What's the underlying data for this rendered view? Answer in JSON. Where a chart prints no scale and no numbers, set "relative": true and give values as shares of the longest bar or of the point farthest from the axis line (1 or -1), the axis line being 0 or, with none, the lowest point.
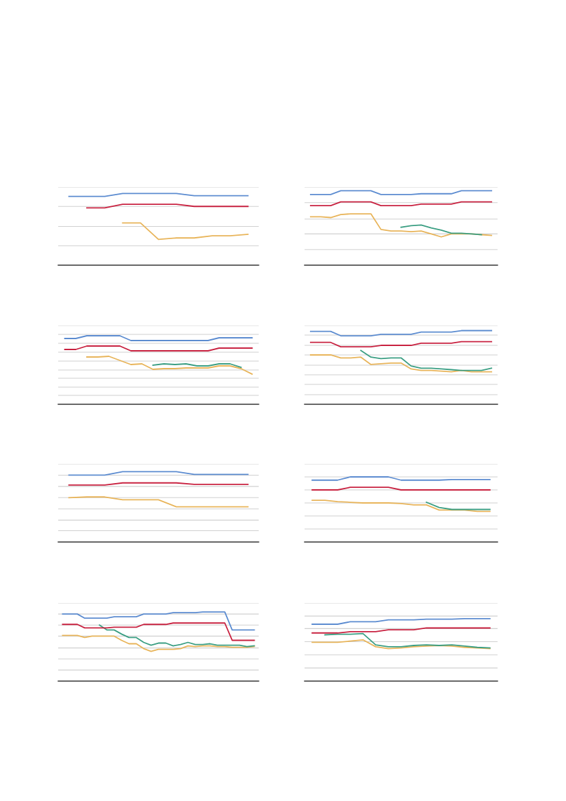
{
  "chart_data": [
    {
      "type": "line",
      "relative": true,
      "ref_lines": [
        {
          "axis": "y",
          "value": 0.27,
          "color": "#d0d0d0"
        },
        {
          "axis": "y",
          "value": 0.54,
          "color": "#d0d0d0"
        },
        {
          "axis": "y",
          "value": 0.82,
          "color": "#d0d0d0"
        },
        {
          "axis": "y",
          "value": 1.09,
          "color": "#d0d0d0"
        }
      ],
      "categories": [
        null,
        null,
        null,
        null,
        null,
        null,
        null,
        null,
        null,
        null,
        null
      ],
      "series": [
        {
          "color": "#e8b459",
          "values": [
            null,
            null,
            null,
            0.59,
            0.59,
            0.36,
            0.38,
            0.38,
            0.41,
            0.41,
            0.43
          ]
        },
        {
          "color": "#c8203f",
          "values": [
            null,
            0.8,
            0.8,
            0.85,
            0.85,
            0.85,
            0.85,
            0.82,
            0.82,
            0.82,
            0.82
          ]
        },
        {
          "color": "#5b8bd0",
          "values": [
            0.96,
            0.96,
            0.96,
            1,
            1,
            1,
            1,
            0.97,
            0.97,
            0.97,
            0.97
          ]
        }
      ]
    },
    {
      "type": "line",
      "relative": true,
      "ref_lines": [
        {
          "axis": "y",
          "value": 0.21,
          "color": "#d0d0d0"
        },
        {
          "axis": "y",
          "value": 0.42,
          "color": "#d0d0d0"
        },
        {
          "axis": "y",
          "value": 0.62,
          "color": "#d0d0d0"
        },
        {
          "axis": "y",
          "value": 0.84,
          "color": "#d0d0d0"
        },
        {
          "axis": "y",
          "value": 1.05,
          "color": "#d0d0d0"
        }
      ],
      "categories": [
        null,
        null,
        null,
        null,
        null,
        null,
        null,
        null,
        null,
        null,
        null,
        null,
        null,
        null,
        null,
        null,
        null,
        null,
        null
      ],
      "series": [
        {
          "color": "#e8b459",
          "values": [
            0.65,
            0.65,
            0.64,
            0.68,
            0.69,
            0.69,
            0.69,
            0.48,
            0.46,
            0.46,
            0.45,
            0.46,
            0.42,
            0.38,
            0.42,
            0.42,
            0.42,
            0.41,
            0.4
          ]
        },
        {
          "color": "#3a9e82",
          "values": [
            null,
            null,
            null,
            null,
            null,
            null,
            null,
            null,
            null,
            0.51,
            0.53,
            0.54,
            0.5,
            0.47,
            0.43,
            0.43,
            0.42,
            0.41,
            null
          ]
        },
        {
          "color": "#c8203f",
          "values": [
            0.8,
            0.8,
            0.8,
            0.85,
            0.85,
            0.85,
            0.85,
            0.8,
            0.8,
            0.8,
            0.8,
            0.82,
            0.82,
            0.82,
            0.82,
            0.85,
            0.85,
            0.85,
            0.85
          ]
        },
        {
          "color": "#5b8bd0",
          "values": [
            0.95,
            0.95,
            0.95,
            1,
            1,
            1,
            1,
            0.95,
            0.95,
            0.95,
            0.95,
            0.96,
            0.96,
            0.96,
            0.96,
            1,
            1,
            1,
            1
          ]
        }
      ]
    },
    {
      "type": "line",
      "relative": true,
      "ref_lines": [
        {
          "axis": "y",
          "value": 0.13,
          "color": "#d0d0d0"
        },
        {
          "axis": "y",
          "value": 0.25,
          "color": "#d0d0d0"
        },
        {
          "axis": "y",
          "value": 0.38,
          "color": "#d0d0d0"
        },
        {
          "axis": "y",
          "value": 0.5,
          "color": "#d0d0d0"
        },
        {
          "axis": "y",
          "value": 0.63,
          "color": "#d0d0d0"
        },
        {
          "axis": "y",
          "value": 0.76,
          "color": "#d0d0d0"
        },
        {
          "axis": "y",
          "value": 0.89,
          "color": "#d0d0d0"
        },
        {
          "axis": "y",
          "value": 1.02,
          "color": "#d0d0d0"
        },
        {
          "axis": "y",
          "value": 1.15,
          "color": "#d0d0d0"
        }
      ],
      "categories": [
        null,
        null,
        null,
        null,
        null,
        null,
        null,
        null,
        null,
        null,
        null,
        null,
        null,
        null,
        null,
        null,
        null,
        null
      ],
      "series": [
        {
          "color": "#e8b459",
          "values": [
            null,
            null,
            0.69,
            0.69,
            0.7,
            0.64,
            0.58,
            0.59,
            0.51,
            0.52,
            0.52,
            0.53,
            0.53,
            0.53,
            0.56,
            0.56,
            0.52,
            0.44
          ]
        },
        {
          "color": "#3a9e82",
          "values": [
            null,
            null,
            null,
            null,
            null,
            null,
            null,
            null,
            0.57,
            0.59,
            0.58,
            0.59,
            0.56,
            0.56,
            0.59,
            0.59,
            0.54,
            null
          ]
        },
        {
          "color": "#c8203f",
          "values": [
            0.8,
            0.8,
            0.85,
            0.85,
            0.85,
            0.85,
            0.78,
            0.78,
            0.78,
            0.78,
            0.78,
            0.78,
            0.78,
            0.78,
            0.82,
            0.82,
            0.82,
            0.82
          ]
        },
        {
          "color": "#5b8bd0",
          "values": [
            0.96,
            0.96,
            1,
            1,
            1,
            1,
            0.93,
            0.93,
            0.93,
            0.93,
            0.93,
            0.93,
            0.93,
            0.93,
            0.97,
            0.97,
            0.97,
            0.97
          ]
        }
      ]
    },
    {
      "type": "line",
      "relative": true,
      "ref_lines": [
        {
          "axis": "y",
          "value": 0.13,
          "color": "#d0d0d0"
        },
        {
          "axis": "y",
          "value": 0.27,
          "color": "#d0d0d0"
        },
        {
          "axis": "y",
          "value": 0.4,
          "color": "#d0d0d0"
        },
        {
          "axis": "y",
          "value": 0.53,
          "color": "#d0d0d0"
        },
        {
          "axis": "y",
          "value": 0.67,
          "color": "#d0d0d0"
        },
        {
          "axis": "y",
          "value": 0.8,
          "color": "#d0d0d0"
        },
        {
          "axis": "y",
          "value": 0.94,
          "color": "#d0d0d0"
        },
        {
          "axis": "y",
          "value": 1.07,
          "color": "#d0d0d0"
        }
      ],
      "categories": [
        null,
        null,
        null,
        null,
        null,
        null,
        null,
        null,
        null,
        null,
        null,
        null,
        null,
        null,
        null,
        null,
        null,
        null,
        null
      ],
      "series": [
        {
          "color": "#e8b459",
          "values": [
            0.67,
            0.67,
            0.67,
            0.63,
            0.63,
            0.64,
            0.54,
            0.55,
            0.56,
            0.56,
            0.48,
            0.46,
            0.46,
            0.45,
            0.44,
            0.46,
            0.44,
            0.44,
            0.44
          ]
        },
        {
          "color": "#3a9e82",
          "values": [
            null,
            null,
            null,
            null,
            null,
            0.73,
            0.64,
            0.62,
            0.63,
            0.63,
            0.52,
            0.49,
            0.49,
            0.48,
            0.47,
            0.46,
            0.46,
            0.46,
            0.49
          ]
        },
        {
          "color": "#c8203f",
          "values": [
            0.84,
            0.84,
            0.84,
            0.78,
            0.78,
            0.78,
            0.78,
            0.8,
            0.8,
            0.8,
            0.8,
            0.83,
            0.83,
            0.83,
            0.83,
            0.85,
            0.85,
            0.85,
            0.85
          ]
        },
        {
          "color": "#5b8bd0",
          "values": [
            0.99,
            0.99,
            0.99,
            0.93,
            0.93,
            0.93,
            0.93,
            0.95,
            0.95,
            0.95,
            0.95,
            0.98,
            0.98,
            0.98,
            0.98,
            1,
            1,
            1,
            1
          ]
        }
      ]
    },
    {
      "type": "line",
      "relative": true,
      "ref_lines": [
        {
          "axis": "y",
          "value": 0.16,
          "color": "#d0d0d0"
        },
        {
          "axis": "y",
          "value": 0.31,
          "color": "#d0d0d0"
        },
        {
          "axis": "y",
          "value": 0.47,
          "color": "#d0d0d0"
        },
        {
          "axis": "y",
          "value": 0.63,
          "color": "#d0d0d0"
        },
        {
          "axis": "y",
          "value": 0.79,
          "color": "#d0d0d0"
        },
        {
          "axis": "y",
          "value": 0.95,
          "color": "#d0d0d0"
        },
        {
          "axis": "y",
          "value": 1.11,
          "color": "#d0d0d0"
        }
      ],
      "categories": [
        null,
        null,
        null,
        null,
        null,
        null,
        null,
        null,
        null,
        null,
        null
      ],
      "series": [
        {
          "color": "#e8b459",
          "values": [
            0.63,
            0.64,
            0.64,
            0.6,
            0.6,
            0.6,
            0.5,
            0.5,
            0.5,
            0.5,
            0.5
          ]
        },
        {
          "color": "#c8203f",
          "values": [
            0.81,
            0.81,
            0.81,
            0.84,
            0.84,
            0.84,
            0.84,
            0.82,
            0.82,
            0.82,
            0.82
          ]
        },
        {
          "color": "#5b8bd0",
          "values": [
            0.95,
            0.95,
            0.95,
            1,
            1,
            1,
            1,
            0.96,
            0.96,
            0.96,
            0.96
          ]
        }
      ]
    },
    {
      "type": "line",
      "relative": true,
      "ref_lines": [
        {
          "axis": "y",
          "value": 0.2,
          "color": "#d0d0d0"
        },
        {
          "axis": "y",
          "value": 0.4,
          "color": "#d0d0d0"
        },
        {
          "axis": "y",
          "value": 0.6,
          "color": "#d0d0d0"
        },
        {
          "axis": "y",
          "value": 0.8,
          "color": "#d0d0d0"
        },
        {
          "axis": "y",
          "value": 1.0,
          "color": "#d0d0d0"
        },
        {
          "axis": "y",
          "value": 1.2,
          "color": "#d0d0d0"
        }
      ],
      "categories": [
        null,
        null,
        null,
        null,
        null,
        null,
        null,
        null,
        null,
        null,
        null,
        null,
        null,
        null,
        null
      ],
      "series": [
        {
          "color": "#e8b459",
          "values": [
            0.64,
            0.64,
            0.62,
            0.61,
            0.6,
            0.6,
            0.6,
            0.59,
            0.57,
            0.57,
            0.49,
            0.49,
            0.49,
            0.47,
            0.47
          ]
        },
        {
          "color": "#3a9e82",
          "values": [
            null,
            null,
            null,
            null,
            null,
            null,
            null,
            null,
            null,
            0.61,
            0.53,
            0.5,
            0.5,
            0.5,
            0.5
          ]
        },
        {
          "color": "#c8203f",
          "values": [
            0.8,
            0.8,
            0.8,
            0.84,
            0.84,
            0.84,
            0.84,
            0.8,
            0.8,
            0.8,
            0.8,
            0.8,
            0.8,
            0.8,
            0.8
          ]
        },
        {
          "color": "#5b8bd0",
          "values": [
            0.95,
            0.95,
            0.95,
            1,
            1,
            1,
            1,
            0.95,
            0.95,
            0.95,
            0.95,
            0.96,
            0.96,
            0.96,
            0.96
          ]
        }
      ]
    },
    {
      "type": "line",
      "relative": true,
      "ref_lines": [
        {
          "axis": "y",
          "value": 0.16,
          "color": "#d0d0d0"
        },
        {
          "axis": "y",
          "value": 0.32,
          "color": "#d0d0d0"
        },
        {
          "axis": "y",
          "value": 0.48,
          "color": "#d0d0d0"
        },
        {
          "axis": "y",
          "value": 0.65,
          "color": "#d0d0d0"
        },
        {
          "axis": "y",
          "value": 0.81,
          "color": "#d0d0d0"
        },
        {
          "axis": "y",
          "value": 0.97,
          "color": "#d0d0d0"
        },
        {
          "axis": "y",
          "value": 1.13,
          "color": "#d0d0d0"
        }
      ],
      "categories": [
        null,
        null,
        null,
        null,
        null,
        null,
        null,
        null,
        null,
        null,
        null,
        null,
        null,
        null,
        null,
        null,
        null,
        null,
        null,
        null,
        null,
        null,
        null,
        null,
        null,
        null,
        null
      ],
      "series": [
        {
          "color": "#e8b459",
          "values": [
            0.66,
            0.66,
            0.66,
            0.63,
            0.65,
            0.65,
            0.65,
            0.65,
            0.59,
            0.54,
            0.54,
            0.47,
            0.43,
            0.46,
            0.46,
            0.46,
            0.47,
            0.51,
            0.5,
            0.51,
            0.51,
            0.5,
            0.5,
            0.49,
            0.49,
            0.49,
            0.5
          ]
        },
        {
          "color": "#3a9e82",
          "values": [
            null,
            null,
            null,
            null,
            null,
            0.81,
            0.74,
            0.74,
            0.68,
            0.63,
            0.63,
            0.56,
            0.52,
            0.55,
            0.55,
            0.51,
            0.53,
            0.56,
            0.53,
            0.53,
            0.54,
            0.52,
            0.52,
            0.52,
            0.52,
            0.5,
            0.51
          ]
        },
        {
          "color": "#c8203f",
          "values": [
            0.82,
            0.82,
            0.82,
            0.77,
            0.77,
            0.77,
            0.77,
            0.78,
            0.78,
            0.78,
            0.78,
            0.82,
            0.82,
            0.82,
            0.82,
            0.84,
            0.84,
            0.84,
            0.84,
            0.84,
            0.84,
            0.84,
            0.84,
            0.59,
            0.59,
            0.59,
            0.59
          ]
        },
        {
          "color": "#5b8bd0",
          "values": [
            0.97,
            0.97,
            0.97,
            0.91,
            0.91,
            0.91,
            0.91,
            0.93,
            0.93,
            0.93,
            0.93,
            0.97,
            0.97,
            0.97,
            0.97,
            0.99,
            0.99,
            0.99,
            0.99,
            1,
            1,
            1,
            1,
            0.74,
            0.74,
            0.74,
            0.74
          ]
        }
      ]
    },
    {
      "type": "line",
      "relative": true,
      "ref_lines": [
        {
          "axis": "y",
          "value": 0.21,
          "color": "#d0d0d0"
        },
        {
          "axis": "y",
          "value": 0.42,
          "color": "#d0d0d0"
        },
        {
          "axis": "y",
          "value": 0.63,
          "color": "#d0d0d0"
        },
        {
          "axis": "y",
          "value": 0.84,
          "color": "#d0d0d0"
        },
        {
          "axis": "y",
          "value": 1.04,
          "color": "#d0d0d0"
        },
        {
          "axis": "y",
          "value": 1.25,
          "color": "#d0d0d0"
        }
      ],
      "categories": [
        null,
        null,
        null,
        null,
        null,
        null,
        null,
        null,
        null,
        null,
        null,
        null,
        null,
        null,
        null
      ],
      "series": [
        {
          "color": "#e8b459",
          "values": [
            0.62,
            0.62,
            0.62,
            0.64,
            0.66,
            0.55,
            0.52,
            0.53,
            0.55,
            0.56,
            0.57,
            0.56,
            0.54,
            0.53,
            0.52
          ]
        },
        {
          "color": "#3a9e82",
          "values": [
            null,
            0.74,
            0.75,
            0.75,
            0.76,
            0.58,
            0.55,
            0.55,
            0.57,
            0.58,
            0.57,
            0.58,
            0.56,
            0.54,
            0.53
          ]
        },
        {
          "color": "#c8203f",
          "values": [
            0.77,
            0.77,
            0.77,
            0.79,
            0.79,
            0.79,
            0.82,
            0.82,
            0.82,
            0.85,
            0.85,
            0.85,
            0.85,
            0.85,
            0.85
          ]
        },
        {
          "color": "#5b8bd0",
          "values": [
            0.91,
            0.91,
            0.91,
            0.95,
            0.95,
            0.95,
            0.98,
            0.98,
            0.98,
            0.99,
            0.99,
            0.99,
            1,
            1,
            1
          ]
        }
      ]
    }
  ]
}
